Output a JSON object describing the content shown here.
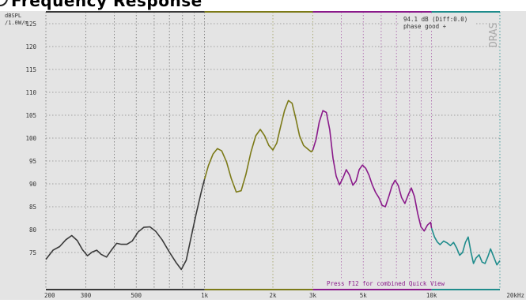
{
  "header": {
    "title_fragment": "Frequency Response"
  },
  "analyzer": {
    "y_unit_line1": "dBSPL",
    "y_unit_line2": "/1.0W/m",
    "readout_line1": "94.1 dB (Diff:0.0)",
    "readout_line2": "phase good +",
    "footer_hint": "Press F12 for combined Quick View",
    "brand": "DRAS",
    "colors": {
      "panel": "#e4e4e4",
      "grid": "#8a8a8a",
      "low_band": "#3a3a3a",
      "mid_band": "#7c7a18",
      "high_band": "#8a1a8a",
      "top_band": "#1f8c8c"
    },
    "bands": [
      {
        "name": "low",
        "from": 200,
        "to": 1000,
        "color": "#3a3a3a"
      },
      {
        "name": "mid",
        "from": 1000,
        "to": 3000,
        "color": "#7c7a18"
      },
      {
        "name": "high",
        "from": 3000,
        "to": 10000,
        "color": "#8a1a8a"
      },
      {
        "name": "top",
        "from": 10000,
        "to": 20000,
        "color": "#1f8c8c"
      }
    ]
  },
  "chart_data": {
    "type": "line",
    "title": "",
    "xlabel": "",
    "ylabel": "dBSPL /1.0W/m",
    "x_scale": "log",
    "xlim": [
      200,
      20000
    ],
    "ylim": [
      71,
      128
    ],
    "grid": true,
    "x_ticks": [
      {
        "value": 200,
        "label": "200"
      },
      {
        "value": 300,
        "label": "300"
      },
      {
        "value": 500,
        "label": "500"
      },
      {
        "value": 1000,
        "label": "1k"
      },
      {
        "value": 2000,
        "label": "2k"
      },
      {
        "value": 3000,
        "label": "3k"
      },
      {
        "value": 5000,
        "label": "5k"
      },
      {
        "value": 10000,
        "label": "10k"
      },
      {
        "value": 20000,
        "label": "20kHz"
      }
    ],
    "y_ticks": [
      {
        "value": 125,
        "label": "125"
      },
      {
        "value": 120,
        "label": "120"
      },
      {
        "value": 115,
        "label": "115"
      },
      {
        "value": 110,
        "label": "110"
      },
      {
        "value": 105,
        "label": "105"
      },
      {
        "value": 100,
        "label": "100"
      },
      {
        "value": 95,
        "label": "95"
      },
      {
        "value": 90,
        "label": "90"
      },
      {
        "value": 85,
        "label": "85"
      },
      {
        "value": 80,
        "label": "80"
      },
      {
        "value": 75,
        "label": "75"
      }
    ],
    "series": [
      {
        "points": [
          [
            200,
            73.5
          ],
          [
            215,
            75.5
          ],
          [
            230,
            76.3
          ],
          [
            245,
            77.8
          ],
          [
            260,
            78.7
          ],
          [
            275,
            77.6
          ],
          [
            290,
            75.6
          ],
          [
            305,
            74.3
          ],
          [
            320,
            75.1
          ],
          [
            335,
            75.5
          ],
          [
            350,
            74.6
          ],
          [
            370,
            74.0
          ],
          [
            390,
            75.6
          ],
          [
            410,
            77.0
          ],
          [
            430,
            76.8
          ],
          [
            455,
            76.8
          ],
          [
            480,
            77.5
          ],
          [
            510,
            79.5
          ],
          [
            540,
            80.5
          ],
          [
            575,
            80.6
          ],
          [
            610,
            79.6
          ],
          [
            650,
            77.8
          ],
          [
            700,
            75.1
          ],
          [
            750,
            72.8
          ],
          [
            790,
            71.3
          ],
          [
            830,
            73.3
          ],
          [
            870,
            78.0
          ],
          [
            920,
            83.6
          ],
          [
            970,
            88.5
          ],
          [
            1000,
            91.0
          ],
          [
            1040,
            94.0
          ],
          [
            1090,
            96.5
          ],
          [
            1140,
            97.7
          ],
          [
            1190,
            97.2
          ],
          [
            1250,
            94.8
          ],
          [
            1310,
            91.2
          ],
          [
            1380,
            88.2
          ],
          [
            1450,
            88.5
          ],
          [
            1520,
            92.0
          ],
          [
            1600,
            96.9
          ],
          [
            1680,
            100.5
          ],
          [
            1760,
            101.9
          ],
          [
            1840,
            100.5
          ],
          [
            1920,
            98.4
          ],
          [
            2000,
            97.4
          ],
          [
            2080,
            98.9
          ],
          [
            2160,
            102.4
          ],
          [
            2250,
            106.0
          ],
          [
            2340,
            108.2
          ],
          [
            2430,
            107.6
          ],
          [
            2520,
            104.4
          ],
          [
            2620,
            100.5
          ],
          [
            2730,
            98.4
          ],
          [
            2850,
            97.6
          ],
          [
            2950,
            97.0
          ],
          [
            3000,
            97.4
          ],
          [
            3100,
            99.7
          ],
          [
            3200,
            103.5
          ],
          [
            3320,
            106.0
          ],
          [
            3440,
            105.6
          ],
          [
            3560,
            101.8
          ],
          [
            3680,
            95.6
          ],
          [
            3800,
            91.7
          ],
          [
            3930,
            89.8
          ],
          [
            4070,
            91.3
          ],
          [
            4210,
            93.1
          ],
          [
            4350,
            91.9
          ],
          [
            4500,
            89.7
          ],
          [
            4650,
            90.6
          ],
          [
            4800,
            93.1
          ],
          [
            4960,
            94.1
          ],
          [
            5130,
            93.4
          ],
          [
            5300,
            91.9
          ],
          [
            5480,
            89.8
          ],
          [
            5670,
            88.1
          ],
          [
            5860,
            87.0
          ],
          [
            6060,
            85.3
          ],
          [
            6260,
            85.0
          ],
          [
            6470,
            87.1
          ],
          [
            6690,
            89.5
          ],
          [
            6910,
            90.8
          ],
          [
            7140,
            89.6
          ],
          [
            7380,
            87.0
          ],
          [
            7630,
            85.7
          ],
          [
            7880,
            87.5
          ],
          [
            8140,
            89.1
          ],
          [
            8410,
            87.2
          ],
          [
            8690,
            83.5
          ],
          [
            8980,
            80.6
          ],
          [
            9280,
            79.7
          ],
          [
            9590,
            81.0
          ],
          [
            9900,
            81.6
          ],
          [
            10000,
            80.3
          ],
          [
            10300,
            78.4
          ],
          [
            10600,
            77.3
          ],
          [
            10900,
            76.7
          ],
          [
            11300,
            77.5
          ],
          [
            11700,
            77.1
          ],
          [
            12100,
            76.5
          ],
          [
            12500,
            77.2
          ],
          [
            12900,
            76.0
          ],
          [
            13300,
            74.4
          ],
          [
            13700,
            75.0
          ],
          [
            14100,
            77.2
          ],
          [
            14500,
            78.4
          ],
          [
            14900,
            75.2
          ],
          [
            15300,
            72.6
          ],
          [
            15700,
            73.8
          ],
          [
            16200,
            74.5
          ],
          [
            16700,
            72.9
          ],
          [
            17200,
            72.6
          ],
          [
            17700,
            74.1
          ],
          [
            18200,
            75.8
          ],
          [
            18800,
            74.0
          ],
          [
            19400,
            72.3
          ],
          [
            20000,
            73.2
          ]
        ]
      }
    ]
  }
}
